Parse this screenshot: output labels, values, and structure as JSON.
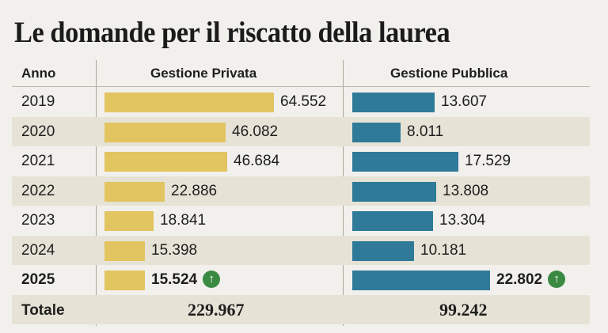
{
  "title": "Le domande per il riscatto della laurea",
  "headers": {
    "anno": "Anno",
    "privata": "Gestione Privata",
    "pubblica": "Gestione Pubblica"
  },
  "rows": [
    {
      "year": "2019",
      "privata": "64.552",
      "pubblica": "13.607"
    },
    {
      "year": "2020",
      "privata": "46.082",
      "pubblica": "8.011"
    },
    {
      "year": "2021",
      "privata": "46.684",
      "pubblica": "17.529"
    },
    {
      "year": "2022",
      "privata": "22.886",
      "pubblica": "13.808"
    },
    {
      "year": "2023",
      "privata": "18.841",
      "pubblica": "13.304"
    },
    {
      "year": "2024",
      "privata": "15.398",
      "pubblica": "10.181"
    },
    {
      "year": "2025",
      "privata": "15.524",
      "pubblica": "22.802"
    }
  ],
  "totale": {
    "label": "Totale",
    "privata": "229.967",
    "pubblica": "99.242"
  },
  "arrow_glyph": "↑",
  "colors": {
    "privata": "#e2c460",
    "pubblica": "#2f7a98",
    "arrow": "#3b8a44",
    "stripe": "#e6e3d6"
  },
  "chart_data": {
    "type": "bar",
    "title": "Le domande per il riscatto della laurea",
    "categories": [
      "2019",
      "2020",
      "2021",
      "2022",
      "2023",
      "2024",
      "2025"
    ],
    "series": [
      {
        "name": "Gestione Privata",
        "values": [
          64552,
          46082,
          46684,
          22886,
          18841,
          15398,
          15524
        ],
        "total": 229967
      },
      {
        "name": "Gestione Pubblica",
        "values": [
          13607,
          8011,
          17529,
          13808,
          13304,
          10181,
          22802
        ],
        "total": 99242
      }
    ],
    "orientation": "horizontal",
    "annotations": [
      "2025 increase arrow on both series"
    ],
    "xlabel": "",
    "ylabel": "Anno"
  }
}
